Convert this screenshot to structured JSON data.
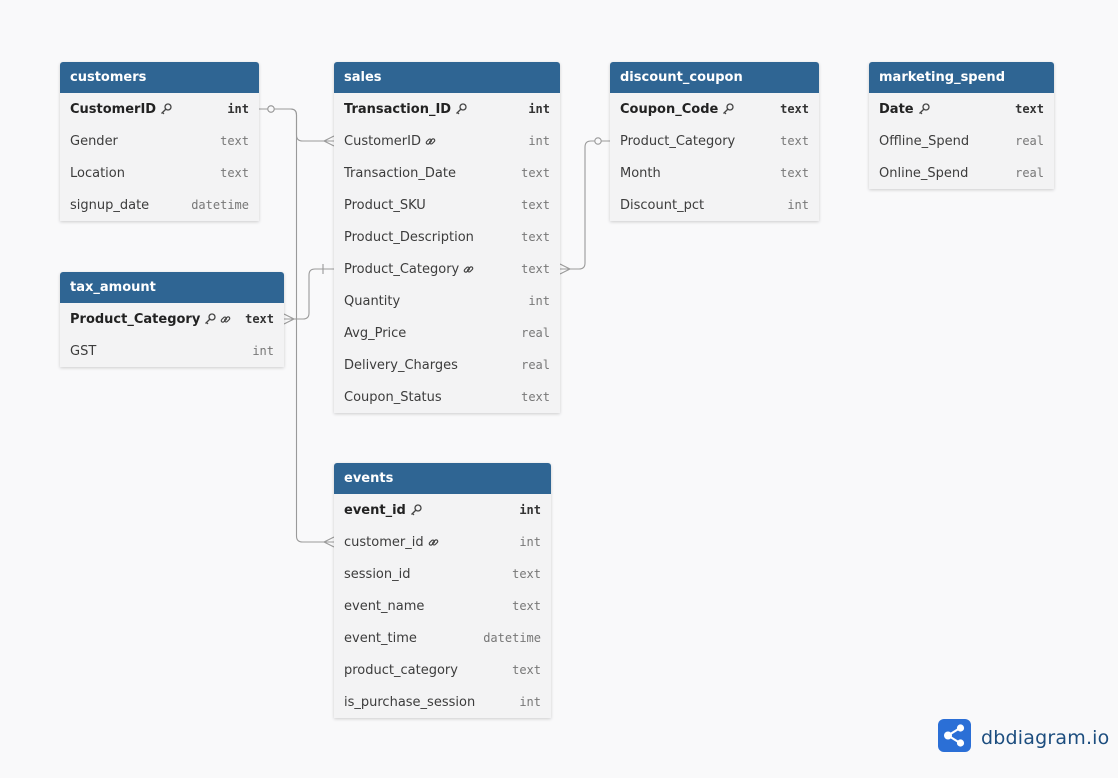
{
  "colors": {
    "header": "#2f6593",
    "background": "#f9f9fa",
    "table_body": "#f3f3f4",
    "connector": "#9a9a9a",
    "logo": "#2b6fd6"
  },
  "brand": {
    "logo_icon": "share-nodes-icon",
    "name": "dbdiagram",
    "suffix": ".io"
  },
  "tables": [
    {
      "key": "customers",
      "name": "customers",
      "fields": [
        {
          "name": "CustomerID",
          "type": "int",
          "pk": true,
          "icons": [
            "key-icon"
          ]
        },
        {
          "name": "Gender",
          "type": "text"
        },
        {
          "name": "Location",
          "type": "text"
        },
        {
          "name": "signup_date",
          "type": "datetime"
        }
      ]
    },
    {
      "key": "tax_amount",
      "name": "tax_amount",
      "fields": [
        {
          "name": "Product_Category",
          "type": "text",
          "pk": true,
          "icons": [
            "key-icon",
            "link-icon"
          ]
        },
        {
          "name": "GST",
          "type": "int"
        }
      ]
    },
    {
      "key": "sales",
      "name": "sales",
      "fields": [
        {
          "name": "Transaction_ID",
          "type": "int",
          "pk": true,
          "icons": [
            "key-icon"
          ]
        },
        {
          "name": "CustomerID",
          "type": "int",
          "icons": [
            "link-icon"
          ]
        },
        {
          "name": "Transaction_Date",
          "type": "text"
        },
        {
          "name": "Product_SKU",
          "type": "text"
        },
        {
          "name": "Product_Description",
          "type": "text"
        },
        {
          "name": "Product_Category",
          "type": "text",
          "icons": [
            "link-icon"
          ]
        },
        {
          "name": "Quantity",
          "type": "int"
        },
        {
          "name": "Avg_Price",
          "type": "real"
        },
        {
          "name": "Delivery_Charges",
          "type": "real"
        },
        {
          "name": "Coupon_Status",
          "type": "text"
        }
      ]
    },
    {
      "key": "events",
      "name": "events",
      "fields": [
        {
          "name": "event_id",
          "type": "int",
          "pk": true,
          "icons": [
            "key-icon"
          ]
        },
        {
          "name": "customer_id",
          "type": "int",
          "icons": [
            "link-icon"
          ]
        },
        {
          "name": "session_id",
          "type": "text"
        },
        {
          "name": "event_name",
          "type": "text"
        },
        {
          "name": "event_time",
          "type": "datetime"
        },
        {
          "name": "product_category",
          "type": "text"
        },
        {
          "name": "is_purchase_session",
          "type": "int"
        }
      ]
    },
    {
      "key": "discount_coupon",
      "name": "discount_coupon",
      "fields": [
        {
          "name": "Coupon_Code",
          "type": "text",
          "pk": true,
          "icons": [
            "key-icon"
          ]
        },
        {
          "name": "Product_Category",
          "type": "text"
        },
        {
          "name": "Month",
          "type": "text"
        },
        {
          "name": "Discount_pct",
          "type": "int"
        }
      ]
    },
    {
      "key": "marketing_spend",
      "name": "marketing_spend",
      "fields": [
        {
          "name": "Date",
          "type": "text",
          "pk": true,
          "icons": [
            "key-icon"
          ]
        },
        {
          "name": "Offline_Spend",
          "type": "real"
        },
        {
          "name": "Online_Spend",
          "type": "real"
        }
      ]
    }
  ],
  "relationships": [
    {
      "from": "customers.CustomerID",
      "to": "sales.CustomerID",
      "from_end": "one-optional",
      "to_end": "many"
    },
    {
      "from": "customers.CustomerID",
      "to": "events.customer_id",
      "from_end": "one-optional",
      "to_end": "many"
    },
    {
      "from": "sales.Product_Category",
      "to": "tax_amount.Product_Category",
      "from_end": "one",
      "to_end": "many"
    },
    {
      "from": "discount_coupon.Product_Category",
      "to": "sales.Product_Category",
      "from_end": "one-optional",
      "to_end": "many"
    }
  ]
}
